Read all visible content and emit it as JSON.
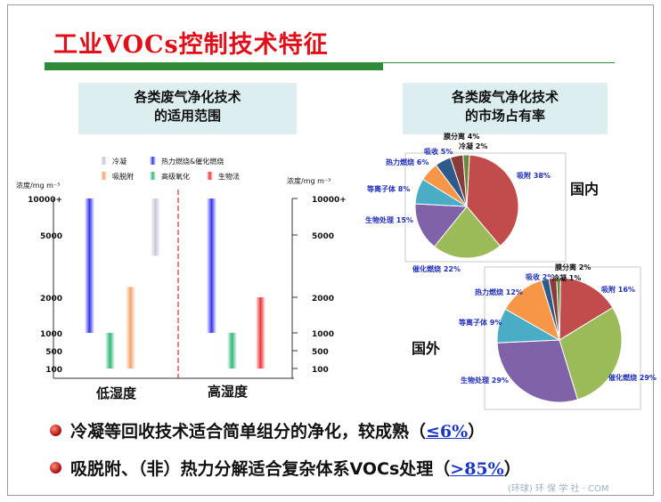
{
  "title": "工业VOCs控制技术特征",
  "box_left": {
    "line1": "各类废气净化技术",
    "line2": "的适用范围"
  },
  "box_right": {
    "line1": "各类废气净化技术",
    "line2": "的市场占有率"
  },
  "bullets": [
    {
      "text": "冷凝等回收技术适合简单组分的净化，较成熟（",
      "highlight": "≤6%",
      "tail": "）"
    },
    {
      "text": "吸脱附、（非）热力分解适合复杂体系VOCs处理（",
      "highlight": ">85%",
      "tail": "）"
    }
  ],
  "watermark": "(环球) 环 保 学 社 · COM",
  "colors": {
    "title": "#e0101a",
    "rule": "#2f8a3a",
    "box": "#ddeef1",
    "highlight": "#1b35c8"
  },
  "chart_data": [
    {
      "type": "bar",
      "title": "",
      "ylabel": "浓度/mg m⁻³",
      "y_ticks": [
        "10000+",
        "5000",
        "2000",
        "1000",
        "500",
        "100"
      ],
      "categories": [
        "低湿度",
        "高湿度"
      ],
      "legend": [
        {
          "name": "冷凝",
          "color": "#c9c4dc"
        },
        {
          "name": "热力燃烧&催化燃烧",
          "color": "#3333ee"
        },
        {
          "name": "吸脱附",
          "color": "#f3a36a"
        },
        {
          "name": "高级氧化",
          "color": "#33b777"
        },
        {
          "name": "生物法",
          "color": "#ee3333"
        }
      ],
      "ranges": [
        {
          "group": "低湿度",
          "series": "热力燃烧&催化燃烧",
          "from": "1000",
          "to": "10000+"
        },
        {
          "group": "低湿度",
          "series": "高级氧化",
          "from": "100",
          "to": "1000"
        },
        {
          "group": "低湿度",
          "series": "吸脱附",
          "from": "100",
          "to": "2500"
        },
        {
          "group": "低湿度",
          "series": "冷凝",
          "from": "4000",
          "to": "10000+"
        },
        {
          "group": "高湿度",
          "series": "热力燃烧&催化燃烧",
          "from": "1000",
          "to": "10000+"
        },
        {
          "group": "高湿度",
          "series": "高级氧化",
          "from": "100",
          "to": "1000"
        },
        {
          "group": "高湿度",
          "series": "生物法",
          "from": "100",
          "to": "2000"
        }
      ]
    },
    {
      "type": "pie",
      "label": "国内",
      "slices": [
        {
          "name": "吸附",
          "value": 38,
          "text": "吸附 38%",
          "color": "#c24c4c"
        },
        {
          "name": "催化燃烧",
          "value": 22,
          "text": "催化燃烧 22%",
          "color": "#9bbb59"
        },
        {
          "name": "生物处理",
          "value": 15,
          "text": "生物处理 15%",
          "color": "#7f62a8"
        },
        {
          "name": "等离子体",
          "value": 8,
          "text": "等离子体 8%",
          "color": "#4bacc6"
        },
        {
          "name": "热力燃烧",
          "value": 6,
          "text": "热力燃烧 6%",
          "color": "#f79646"
        },
        {
          "name": "吸收",
          "value": 5,
          "text": "吸收 5%",
          "color": "#2e5a8a"
        },
        {
          "name": "膜分离",
          "value": 4,
          "text": "膜分离 4%",
          "color": "#8a3b3b"
        },
        {
          "name": "冷凝",
          "value": 2,
          "text": "冷凝 2%",
          "color": "#6a8a3b"
        }
      ]
    },
    {
      "type": "pie",
      "label": "国外",
      "slices": [
        {
          "name": "吸附",
          "value": 16,
          "text": "吸附 16%",
          "color": "#c24c4c"
        },
        {
          "name": "催化燃烧",
          "value": 29,
          "text": "催化燃烧 29%",
          "color": "#9bbb59"
        },
        {
          "name": "生物处理",
          "value": 29,
          "text": "生物处理 29%",
          "color": "#7f62a8"
        },
        {
          "name": "等离子体",
          "value": 9,
          "text": "等离子体 9%",
          "color": "#4bacc6"
        },
        {
          "name": "热力燃烧",
          "value": 12,
          "text": "热力燃烧 12%",
          "color": "#f79646"
        },
        {
          "name": "吸收",
          "value": 2,
          "text": "吸收 2%",
          "color": "#2e5a8a"
        },
        {
          "name": "膜分离",
          "value": 2,
          "text": "膜分离 2%",
          "color": "#8a3b3b"
        },
        {
          "name": "冷凝",
          "value": 1,
          "text": "冷凝 1%",
          "color": "#6a8a3b"
        }
      ]
    }
  ]
}
